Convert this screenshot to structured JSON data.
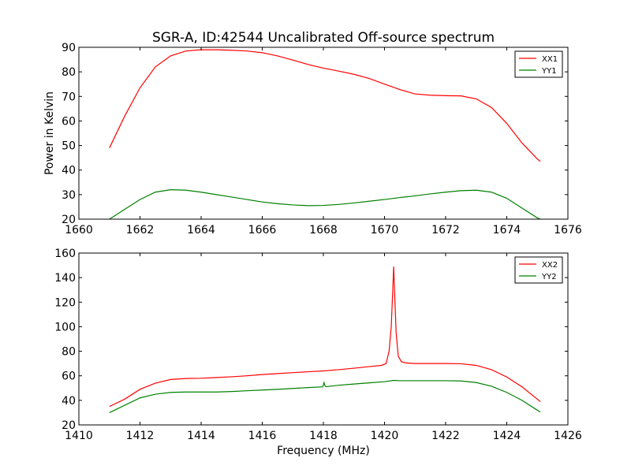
{
  "title": "SGR-A, ID:42544 Uncalibrated Off-source spectrum",
  "chart_data": [
    {
      "type": "line",
      "xlabel": "",
      "ylabel": "Power in Kelvin",
      "xlim": [
        1660,
        1676
      ],
      "ylim": [
        20,
        90
      ],
      "xticks": [
        "1660",
        "1662",
        "1664",
        "1666",
        "1668",
        "1670",
        "1672",
        "1674",
        "1676"
      ],
      "yticks": [
        "20",
        "30",
        "40",
        "50",
        "60",
        "70",
        "80",
        "90"
      ],
      "grid": false,
      "legend_position": "top-right",
      "series": [
        {
          "name": "XX1",
          "color": "#ff0000",
          "x": [
            1661.0,
            1661.5,
            1662.0,
            1662.5,
            1663.0,
            1663.5,
            1664.0,
            1664.5,
            1665.0,
            1665.5,
            1666.0,
            1666.5,
            1667.0,
            1667.5,
            1668.0,
            1668.5,
            1669.0,
            1669.5,
            1670.0,
            1670.5,
            1671.0,
            1671.5,
            1672.0,
            1672.5,
            1673.0,
            1673.5,
            1674.0,
            1674.5,
            1675.0,
            1675.1
          ],
          "y": [
            49.0,
            62.0,
            73.5,
            82.0,
            86.5,
            88.5,
            89.0,
            89.0,
            88.8,
            88.5,
            87.8,
            86.5,
            84.8,
            83.0,
            81.5,
            80.3,
            79.0,
            77.3,
            75.0,
            72.8,
            71.0,
            70.5,
            70.3,
            70.2,
            69.0,
            65.5,
            59.0,
            51.0,
            44.5,
            43.5
          ]
        },
        {
          "name": "YY1",
          "color": "#008000",
          "x": [
            1661.0,
            1661.5,
            1662.0,
            1662.5,
            1663.0,
            1663.5,
            1664.0,
            1664.5,
            1665.0,
            1665.5,
            1666.0,
            1666.5,
            1667.0,
            1667.5,
            1668.0,
            1668.5,
            1669.0,
            1669.5,
            1670.0,
            1670.5,
            1671.0,
            1671.5,
            1672.0,
            1672.5,
            1673.0,
            1673.5,
            1674.0,
            1674.5,
            1675.0,
            1675.1
          ],
          "y": [
            20.0,
            24.0,
            28.0,
            31.0,
            32.0,
            31.8,
            31.0,
            30.0,
            29.0,
            28.0,
            27.0,
            26.3,
            25.8,
            25.5,
            25.6,
            26.0,
            26.6,
            27.3,
            28.0,
            28.8,
            29.5,
            30.3,
            31.0,
            31.6,
            31.8,
            31.0,
            28.5,
            24.5,
            20.5,
            20.0
          ]
        }
      ]
    },
    {
      "type": "line",
      "xlabel": "Frequency (MHz)",
      "ylabel": "",
      "xlim": [
        1410,
        1426
      ],
      "ylim": [
        20,
        160
      ],
      "xticks": [
        "1410",
        "1412",
        "1414",
        "1416",
        "1418",
        "1420",
        "1422",
        "1424",
        "1426"
      ],
      "yticks": [
        "20",
        "40",
        "60",
        "80",
        "100",
        "120",
        "140",
        "160"
      ],
      "grid": false,
      "legend_position": "top-right",
      "series": [
        {
          "name": "XX2",
          "color": "#ff0000",
          "x": [
            1411.0,
            1411.5,
            1412.0,
            1412.5,
            1413.0,
            1413.5,
            1414.0,
            1414.5,
            1415.0,
            1415.5,
            1416.0,
            1416.5,
            1417.0,
            1417.5,
            1418.0,
            1418.5,
            1419.0,
            1419.5,
            1419.9,
            1420.05,
            1420.15,
            1420.22,
            1420.27,
            1420.3,
            1420.33,
            1420.38,
            1420.45,
            1420.55,
            1420.7,
            1421.0,
            1421.5,
            1422.0,
            1422.5,
            1423.0,
            1423.5,
            1424.0,
            1424.5,
            1425.0,
            1425.1
          ],
          "y": [
            35.0,
            41.0,
            49.0,
            54.0,
            57.0,
            57.8,
            58.0,
            58.6,
            59.2,
            60.0,
            61.0,
            61.8,
            62.6,
            63.3,
            64.0,
            65.0,
            66.2,
            67.5,
            68.5,
            70.0,
            80.0,
            100.0,
            130.0,
            149.0,
            128.0,
            95.0,
            76.0,
            71.5,
            70.5,
            70.0,
            70.0,
            70.0,
            69.8,
            68.5,
            65.0,
            59.0,
            51.0,
            41.0,
            39.0
          ]
        },
        {
          "name": "YY2",
          "color": "#008000",
          "x": [
            1411.0,
            1411.5,
            1412.0,
            1412.5,
            1413.0,
            1413.5,
            1414.0,
            1414.5,
            1415.0,
            1415.5,
            1416.0,
            1416.5,
            1417.0,
            1417.5,
            1417.98,
            1418.02,
            1418.06,
            1418.1,
            1418.5,
            1419.0,
            1419.5,
            1420.0,
            1420.3,
            1420.5,
            1421.0,
            1421.5,
            1422.0,
            1422.5,
            1423.0,
            1423.5,
            1424.0,
            1424.5,
            1425.0,
            1425.1
          ],
          "y": [
            30.0,
            36.0,
            42.0,
            45.0,
            46.5,
            46.8,
            46.8,
            46.8,
            47.2,
            47.8,
            48.4,
            49.0,
            49.7,
            50.4,
            51.0,
            54.5,
            51.5,
            51.2,
            52.3,
            53.3,
            54.3,
            55.2,
            56.3,
            56.0,
            56.0,
            56.0,
            56.0,
            55.8,
            54.5,
            51.5,
            46.5,
            40.0,
            32.0,
            30.5
          ]
        }
      ]
    }
  ]
}
